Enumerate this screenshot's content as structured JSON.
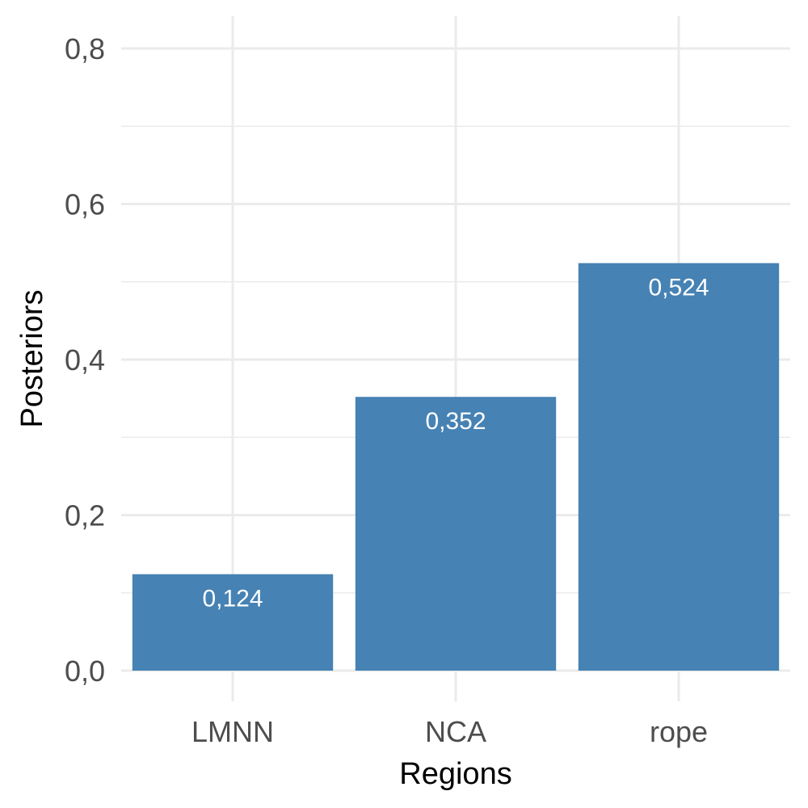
{
  "chart_data": {
    "type": "bar",
    "title": "",
    "xlabel": "Regions",
    "ylabel": "Posteriors",
    "categories": [
      "LMNN",
      "NCA",
      "rope"
    ],
    "values": [
      0.124,
      0.352,
      0.524
    ],
    "data_labels": [
      "0,124",
      "0,352",
      "0,524"
    ],
    "ylim": [
      0,
      0.8
    ],
    "y_ticks": [
      0,
      0.2,
      0.4,
      0.6,
      0.8
    ],
    "y_tick_labels": [
      "0,0",
      "0,2",
      "0,4",
      "0,6",
      "0,8"
    ],
    "grid": true,
    "legend": "none",
    "colors": {
      "bar": "#4682b4",
      "grid": "#ebebeb",
      "tick_text": "#4d4d4d",
      "label_text": "#ffffff"
    }
  }
}
